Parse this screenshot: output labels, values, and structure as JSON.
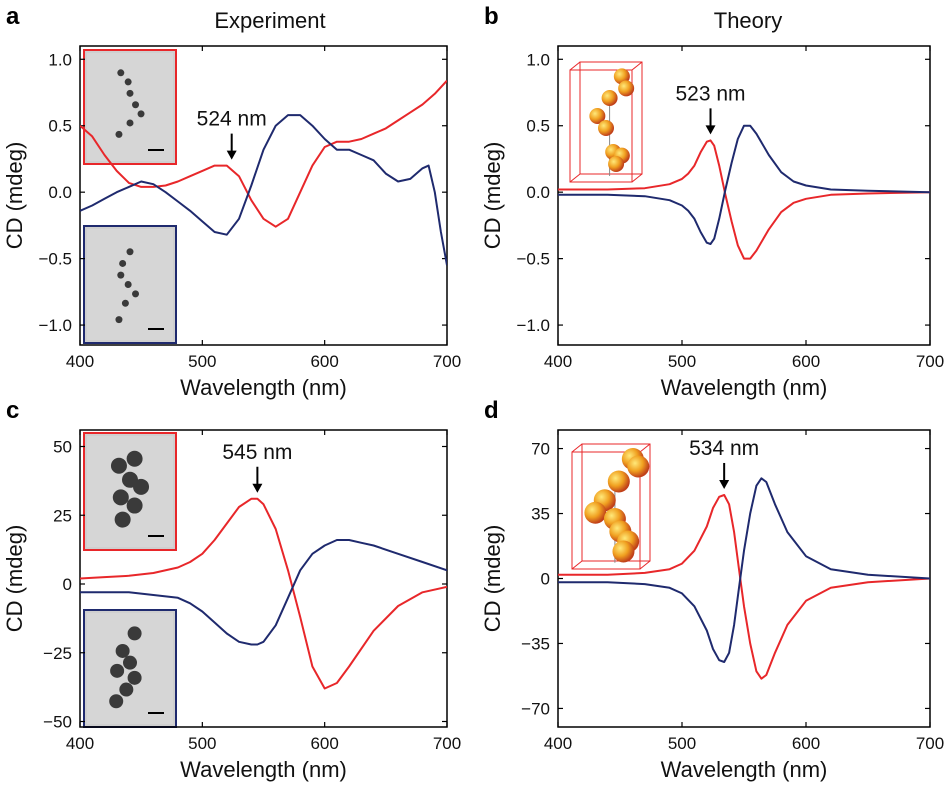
{
  "column_titles": [
    "Experiment",
    "Theory"
  ],
  "colors": {
    "red": "#e8272a",
    "blue": "#1f2a6e",
    "axis": "#000000"
  },
  "chart_data": [
    {
      "panel": "a",
      "type": "line",
      "xlabel": "Wavelength (nm)",
      "ylabel": "CD (mdeg)",
      "xlim": [
        400,
        700
      ],
      "ylim": [
        -1.15,
        1.1
      ],
      "xticks": [
        400,
        500,
        600,
        700
      ],
      "yticks": [
        -1.0,
        -0.5,
        0.0,
        0.5,
        1.0
      ],
      "ytick_labels": [
        "−1.0",
        "−0.5",
        "0.0",
        "0.5",
        "1.0"
      ],
      "annotation": {
        "text": "524 nm",
        "x": 524,
        "y": 0.2
      },
      "insets": [
        "micrograph-red",
        "micrograph-blue"
      ],
      "series": [
        {
          "color": "red",
          "x": [
            400,
            410,
            420,
            430,
            440,
            450,
            460,
            470,
            480,
            490,
            500,
            510,
            520,
            530,
            540,
            550,
            560,
            570,
            580,
            590,
            600,
            610,
            620,
            630,
            640,
            650,
            660,
            670,
            680,
            690,
            700
          ],
          "y": [
            0.5,
            0.42,
            0.28,
            0.16,
            0.07,
            0.04,
            0.04,
            0.05,
            0.08,
            0.12,
            0.16,
            0.2,
            0.2,
            0.12,
            -0.06,
            -0.2,
            -0.26,
            -0.2,
            0.0,
            0.2,
            0.34,
            0.38,
            0.38,
            0.4,
            0.44,
            0.48,
            0.54,
            0.6,
            0.66,
            0.74,
            0.84
          ]
        },
        {
          "color": "blue",
          "x": [
            400,
            410,
            420,
            430,
            440,
            450,
            460,
            470,
            480,
            490,
            500,
            510,
            520,
            530,
            540,
            550,
            560,
            570,
            580,
            590,
            600,
            610,
            620,
            630,
            640,
            650,
            660,
            670,
            680,
            685,
            690,
            695,
            700
          ],
          "y": [
            -0.14,
            -0.1,
            -0.05,
            0.0,
            0.04,
            0.08,
            0.06,
            0.0,
            -0.07,
            -0.14,
            -0.22,
            -0.3,
            -0.32,
            -0.2,
            0.05,
            0.32,
            0.5,
            0.58,
            0.58,
            0.5,
            0.4,
            0.32,
            0.32,
            0.28,
            0.24,
            0.14,
            0.08,
            0.1,
            0.18,
            0.2,
            0.0,
            -0.3,
            -0.55
          ]
        }
      ]
    },
    {
      "panel": "b",
      "type": "line",
      "xlabel": "Wavelength (nm)",
      "ylabel": "CD (mdeg)",
      "xlim": [
        400,
        700
      ],
      "ylim": [
        -1.15,
        1.1
      ],
      "xticks": [
        400,
        500,
        600,
        700
      ],
      "yticks": [
        -1.0,
        -0.5,
        0.0,
        0.5,
        1.0
      ],
      "ytick_labels": [
        "−1.0",
        "−0.5",
        "0.0",
        "0.5",
        "1.0"
      ],
      "annotation": {
        "text": "523 nm",
        "x": 523,
        "y": 0.39
      },
      "insets": [
        "model-red"
      ],
      "series": [
        {
          "color": "red",
          "x": [
            400,
            440,
            470,
            490,
            500,
            505,
            510,
            515,
            520,
            523,
            526,
            530,
            535,
            540,
            545,
            550,
            555,
            560,
            570,
            580,
            590,
            600,
            620,
            650,
            700
          ],
          "y": [
            0.02,
            0.02,
            0.03,
            0.06,
            0.1,
            0.14,
            0.2,
            0.3,
            0.38,
            0.39,
            0.35,
            0.2,
            -0.02,
            -0.22,
            -0.4,
            -0.5,
            -0.5,
            -0.44,
            -0.28,
            -0.15,
            -0.08,
            -0.05,
            -0.02,
            -0.01,
            0.0
          ]
        },
        {
          "color": "blue",
          "x": [
            400,
            440,
            470,
            490,
            500,
            505,
            510,
            515,
            520,
            523,
            526,
            530,
            535,
            540,
            545,
            550,
            555,
            560,
            570,
            580,
            590,
            600,
            620,
            650,
            700
          ],
          "y": [
            -0.02,
            -0.02,
            -0.03,
            -0.06,
            -0.1,
            -0.14,
            -0.2,
            -0.3,
            -0.38,
            -0.39,
            -0.35,
            -0.2,
            0.02,
            0.22,
            0.4,
            0.5,
            0.5,
            0.44,
            0.28,
            0.15,
            0.08,
            0.05,
            0.02,
            0.01,
            0.0
          ]
        }
      ]
    },
    {
      "panel": "c",
      "type": "line",
      "xlabel": "Wavelength (nm)",
      "ylabel": "CD (mdeg)",
      "xlim": [
        400,
        700
      ],
      "ylim": [
        -52,
        56
      ],
      "xticks": [
        400,
        500,
        600,
        700
      ],
      "yticks": [
        -50,
        -25,
        0,
        25,
        50
      ],
      "ytick_labels": [
        "−50",
        "−25",
        "0",
        "25",
        "50"
      ],
      "annotation": {
        "text": "545 nm",
        "x": 545,
        "y": 31
      },
      "insets": [
        "micrograph-red",
        "micrograph-blue"
      ],
      "series": [
        {
          "color": "red",
          "x": [
            400,
            420,
            440,
            460,
            480,
            490,
            500,
            510,
            520,
            530,
            540,
            545,
            550,
            560,
            570,
            580,
            590,
            600,
            610,
            620,
            640,
            660,
            680,
            700
          ],
          "y": [
            2,
            2.5,
            3,
            4,
            6,
            8,
            11,
            16,
            22,
            28,
            31,
            31,
            29,
            20,
            5,
            -12,
            -30,
            -38,
            -36,
            -30,
            -17,
            -8,
            -3,
            -1
          ]
        },
        {
          "color": "blue",
          "x": [
            400,
            420,
            440,
            460,
            480,
            490,
            500,
            510,
            520,
            530,
            540,
            545,
            550,
            560,
            570,
            580,
            590,
            600,
            610,
            620,
            630,
            640,
            660,
            680,
            700
          ],
          "y": [
            -3,
            -3,
            -3,
            -4,
            -5,
            -7,
            -10,
            -14,
            -18,
            -21,
            -22,
            -22,
            -21,
            -15,
            -5,
            5,
            11,
            14,
            16,
            16,
            15,
            14,
            11,
            8,
            5
          ]
        }
      ]
    },
    {
      "panel": "d",
      "type": "line",
      "xlabel": "Wavelength (nm)",
      "ylabel": "CD (mdeg)",
      "xlim": [
        400,
        700
      ],
      "ylim": [
        -80,
        80
      ],
      "xticks": [
        400,
        500,
        600,
        700
      ],
      "yticks": [
        -70,
        -35,
        0,
        35,
        70
      ],
      "ytick_labels": [
        "−70",
        "−35",
        "0",
        "35",
        "70"
      ],
      "annotation": {
        "text": "534 nm",
        "x": 534,
        "y": 45
      },
      "insets": [
        "model-red"
      ],
      "series": [
        {
          "color": "red",
          "x": [
            400,
            440,
            470,
            490,
            500,
            510,
            520,
            525,
            530,
            534,
            538,
            542,
            546,
            550,
            555,
            560,
            564,
            568,
            575,
            585,
            600,
            620,
            650,
            700
          ],
          "y": [
            2,
            2,
            3,
            5,
            8,
            15,
            28,
            38,
            44,
            45,
            40,
            25,
            5,
            -15,
            -35,
            -50,
            -54,
            -52,
            -40,
            -25,
            -12,
            -5,
            -2,
            0
          ]
        },
        {
          "color": "blue",
          "x": [
            400,
            440,
            470,
            490,
            500,
            510,
            520,
            525,
            530,
            534,
            538,
            542,
            546,
            550,
            555,
            560,
            564,
            568,
            575,
            585,
            600,
            620,
            650,
            700
          ],
          "y": [
            -2,
            -2,
            -3,
            -5,
            -8,
            -15,
            -28,
            -38,
            -44,
            -45,
            -40,
            -25,
            -5,
            15,
            35,
            50,
            54,
            52,
            40,
            25,
            12,
            5,
            2,
            0
          ]
        }
      ]
    }
  ]
}
